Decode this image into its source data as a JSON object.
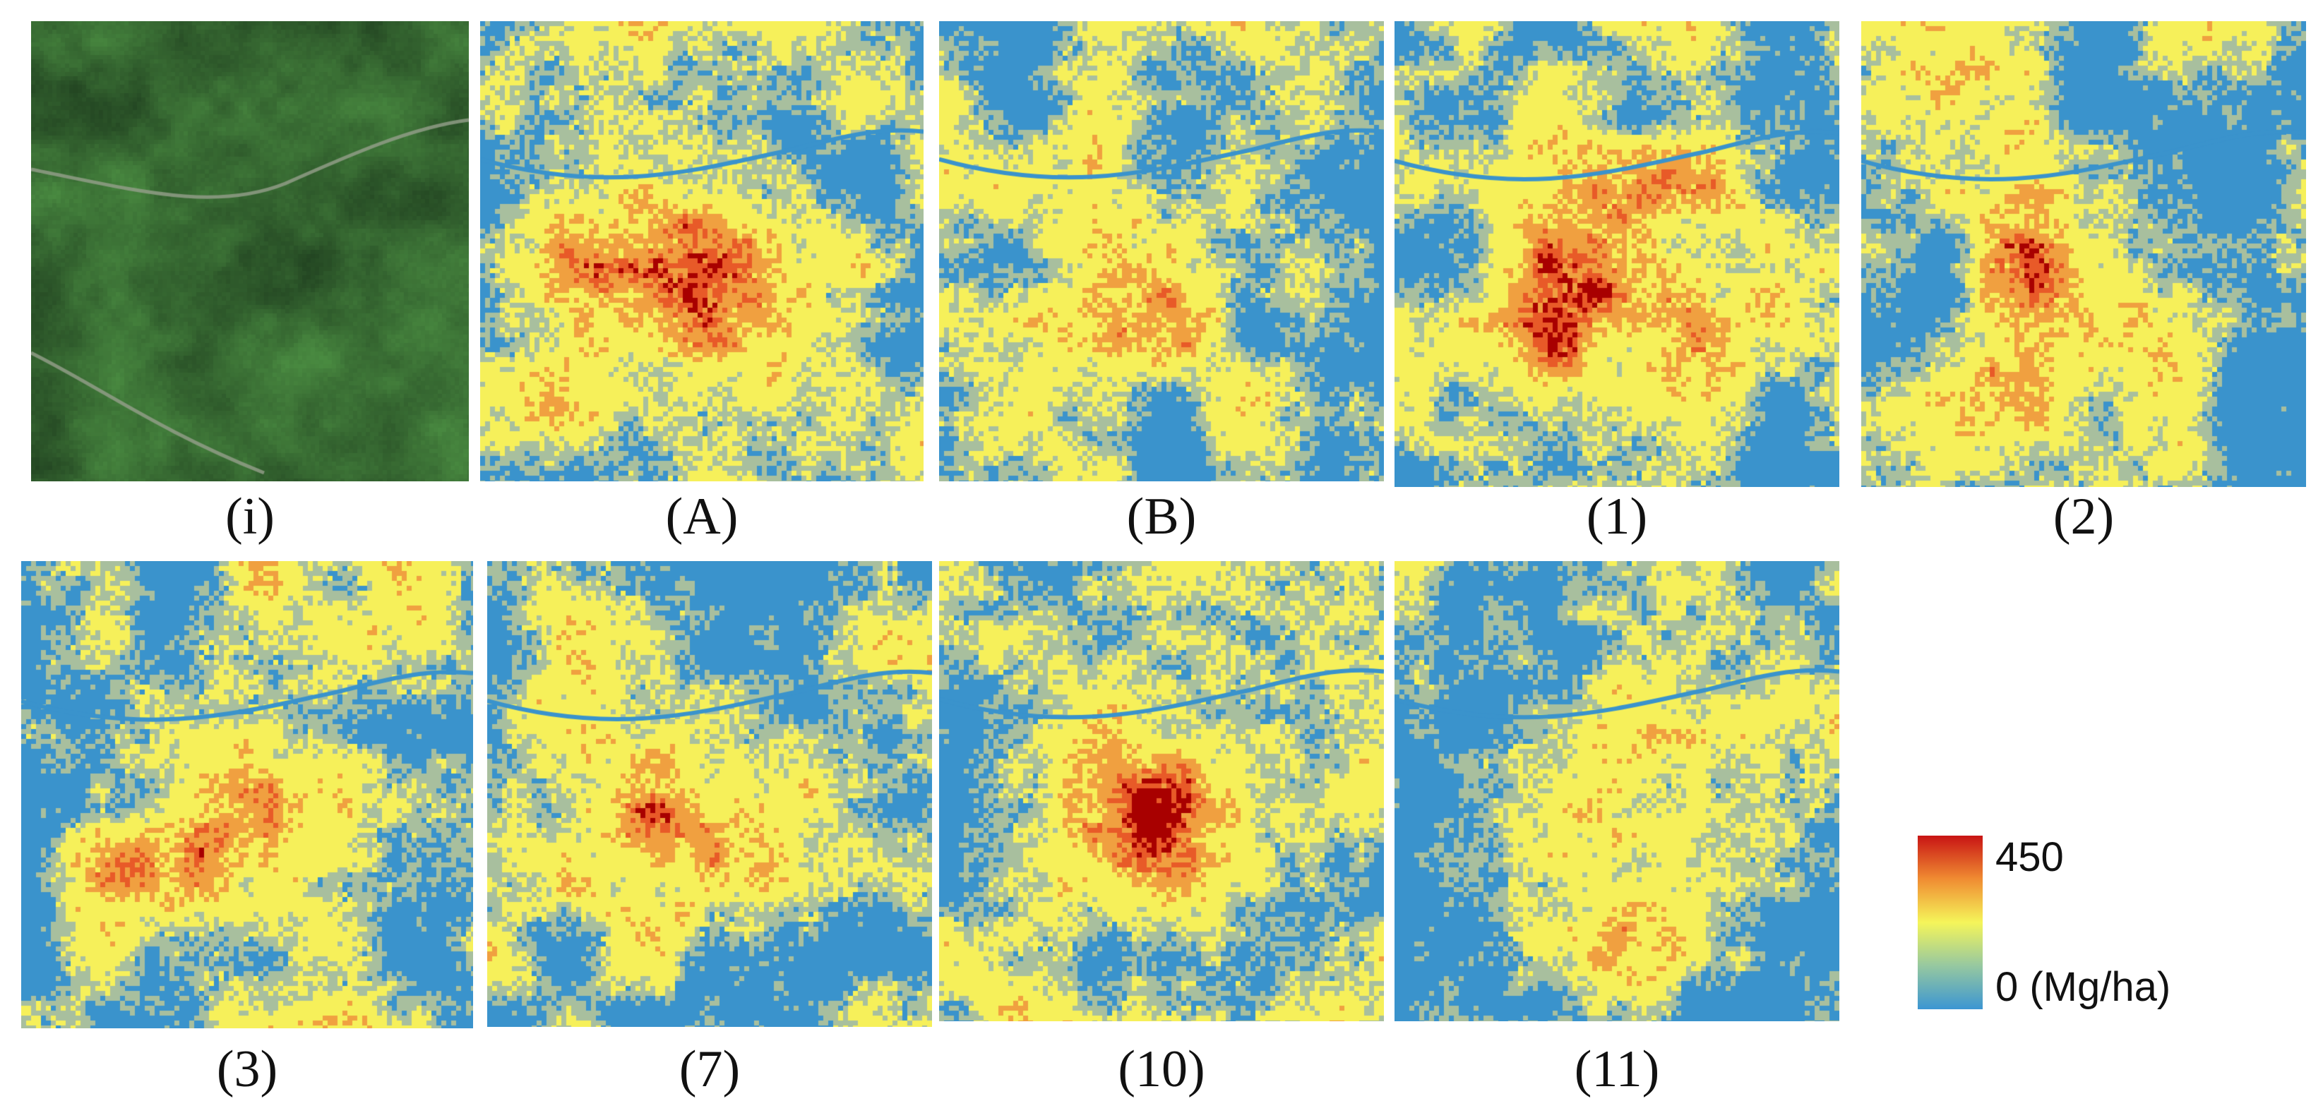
{
  "panels": [
    {
      "caption": "(i)",
      "kind": "satellite-image",
      "seed": 11
    },
    {
      "caption": "(A)",
      "kind": "biomass-map",
      "seed": 21,
      "intensity": 1.0
    },
    {
      "caption": "(B)",
      "kind": "biomass-map",
      "seed": 33,
      "intensity": 0.7
    },
    {
      "caption": "(1)",
      "kind": "biomass-map",
      "seed": 41,
      "intensity": 1.0
    },
    {
      "caption": "(2)",
      "kind": "biomass-map",
      "seed": 52,
      "intensity": 0.85
    },
    {
      "caption": "(3)",
      "kind": "biomass-map",
      "seed": 63,
      "intensity": 0.95
    },
    {
      "caption": "(7)",
      "kind": "biomass-map",
      "seed": 74,
      "intensity": 0.88
    },
    {
      "caption": "(10)",
      "kind": "biomass-map",
      "seed": 85,
      "intensity": 0.72
    },
    {
      "caption": "(11)",
      "kind": "biomass-map",
      "seed": 96,
      "intensity": 0.74
    }
  ],
  "legend": {
    "max_label": "450",
    "min_label": "0 (Mg/ha)",
    "colors": [
      "#c81414",
      "#f08c32",
      "#f5f55a",
      "#96c8a0",
      "#3c96d2"
    ]
  },
  "map_colors": {
    "water_blue": "#3a93cc",
    "grey_green": "#a8bf9e",
    "yellow": "#f6f05a",
    "orange": "#f0a040",
    "red_orange": "#e85a28",
    "dark_red": "#a80000"
  }
}
